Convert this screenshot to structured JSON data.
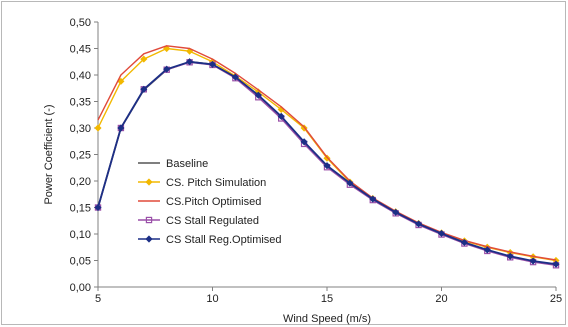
{
  "chart_data": {
    "type": "line",
    "title": "",
    "xlabel": "Wind Speed (m/s)",
    "ylabel": "Power Coefficient (-)",
    "xlim": [
      5,
      25
    ],
    "ylim": [
      0,
      0.5
    ],
    "xticks": [
      "5",
      "10",
      "15",
      "20",
      "25"
    ],
    "yticks": [
      "0,00",
      "0,05",
      "0,10",
      "0,15",
      "0,20",
      "0,25",
      "0,30",
      "0,35",
      "0,40",
      "0,45",
      "0,50"
    ],
    "grid": false,
    "legend_position": "bottom-left-inside",
    "x": [
      5,
      6,
      7,
      8,
      9,
      10,
      11,
      12,
      13,
      14,
      15,
      16,
      17,
      18,
      19,
      20,
      21,
      22,
      23,
      24,
      25
    ],
    "series": [
      {
        "name": "Baseline",
        "color": "#555555",
        "marker": "none",
        "values": [
          0.15,
          0.3,
          0.372,
          0.41,
          0.425,
          0.42,
          0.395,
          0.36,
          0.32,
          0.272,
          0.228,
          0.195,
          0.165,
          0.14,
          0.118,
          0.1,
          0.083,
          0.069,
          0.057,
          0.048,
          0.042
        ]
      },
      {
        "name": "CS. Pitch Simulation",
        "color": "#f2b800",
        "marker": "diamond",
        "values": [
          0.3,
          0.388,
          0.43,
          0.45,
          0.445,
          0.425,
          0.398,
          0.368,
          0.335,
          0.3,
          0.243,
          0.198,
          0.167,
          0.142,
          0.12,
          0.102,
          0.087,
          0.075,
          0.065,
          0.057,
          0.05
        ]
      },
      {
        "name": "CS.Pitch Optimised",
        "color": "#e04a3a",
        "marker": "none",
        "values": [
          0.315,
          0.4,
          0.44,
          0.455,
          0.45,
          0.43,
          0.403,
          0.372,
          0.34,
          0.302,
          0.245,
          0.2,
          0.168,
          0.143,
          0.121,
          0.103,
          0.088,
          0.076,
          0.066,
          0.058,
          0.051
        ]
      },
      {
        "name": "CS Stall Regulated",
        "color": "#9a4fa8",
        "marker": "square",
        "values": [
          0.15,
          0.3,
          0.373,
          0.41,
          0.424,
          0.419,
          0.394,
          0.358,
          0.318,
          0.27,
          0.226,
          0.193,
          0.164,
          0.139,
          0.117,
          0.099,
          0.082,
          0.068,
          0.056,
          0.047,
          0.041
        ]
      },
      {
        "name": "CS Stall Reg.Optimised",
        "color": "#1c2f86",
        "marker": "diamond",
        "values": [
          0.15,
          0.3,
          0.373,
          0.411,
          0.425,
          0.42,
          0.396,
          0.362,
          0.322,
          0.274,
          0.229,
          0.196,
          0.166,
          0.141,
          0.119,
          0.101,
          0.084,
          0.07,
          0.058,
          0.049,
          0.043
        ]
      }
    ]
  }
}
